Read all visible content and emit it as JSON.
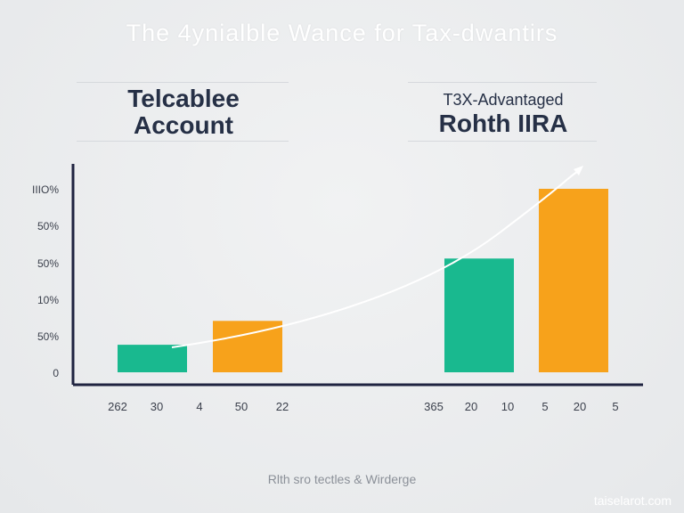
{
  "title": "The 4ynialble Wance for Tax-dwantirs",
  "left_header": {
    "line1": "Telcablee",
    "line2": "Account"
  },
  "right_header": {
    "subtitle": "T3X-Advantaged",
    "title": "Rohth IIRA"
  },
  "footer": "Rlth sro tectles & Wirderge",
  "watermark": "taiselarot.com",
  "colors": {
    "teal": "#19b98f",
    "orange": "#f7a21b",
    "axis": "#1f2340",
    "curve": "#ffffff"
  },
  "chart_data": {
    "type": "bar",
    "ytick_labels": [
      "IIIO%",
      "50%",
      "50%",
      "10%",
      "50%",
      "0"
    ],
    "xtick_labels": [
      "262",
      "30",
      "4",
      "50",
      "22",
      "365",
      "20",
      "10",
      "5",
      "20",
      "5"
    ],
    "ylim": [
      0,
      100
    ],
    "bars": [
      {
        "color": "teal",
        "value": 15
      },
      {
        "color": "orange",
        "value": 28
      },
      {
        "color": "teal",
        "value": 62
      },
      {
        "color": "orange",
        "value": 100
      }
    ],
    "grid": false
  }
}
